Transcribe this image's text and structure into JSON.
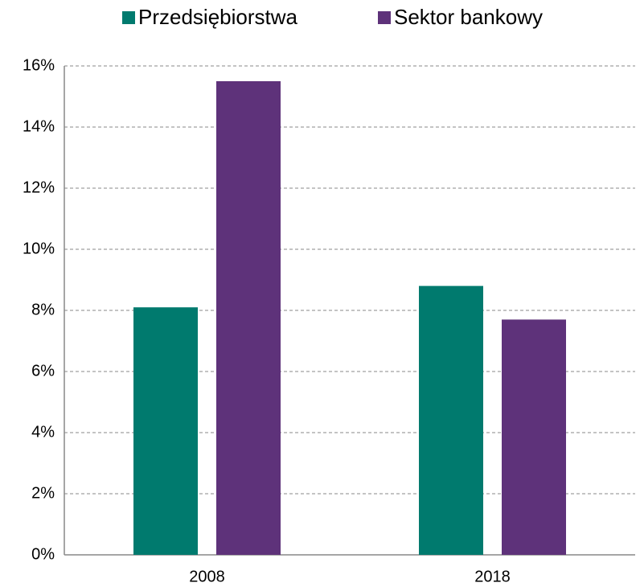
{
  "chart_data": {
    "type": "bar",
    "categories": [
      "2008",
      "2018"
    ],
    "series": [
      {
        "name": "Przedsiębiorstwa",
        "color": "#007a6e",
        "values": [
          8.1,
          8.8
        ]
      },
      {
        "name": "Sektor bankowy",
        "color": "#5e327a",
        "values": [
          15.5,
          7.7
        ]
      }
    ],
    "ylim": [
      0,
      16
    ],
    "yticks": [
      {
        "value": 0,
        "label": "0%"
      },
      {
        "value": 2,
        "label": "2%"
      },
      {
        "value": 4,
        "label": "4%"
      },
      {
        "value": 6,
        "label": "6%"
      },
      {
        "value": 8,
        "label": "8%"
      },
      {
        "value": 10,
        "label": "10%"
      },
      {
        "value": 12,
        "label": "12%"
      },
      {
        "value": 14,
        "label": "14%"
      },
      {
        "value": 16,
        "label": "16%"
      }
    ],
    "grid": true,
    "legend": "top"
  }
}
